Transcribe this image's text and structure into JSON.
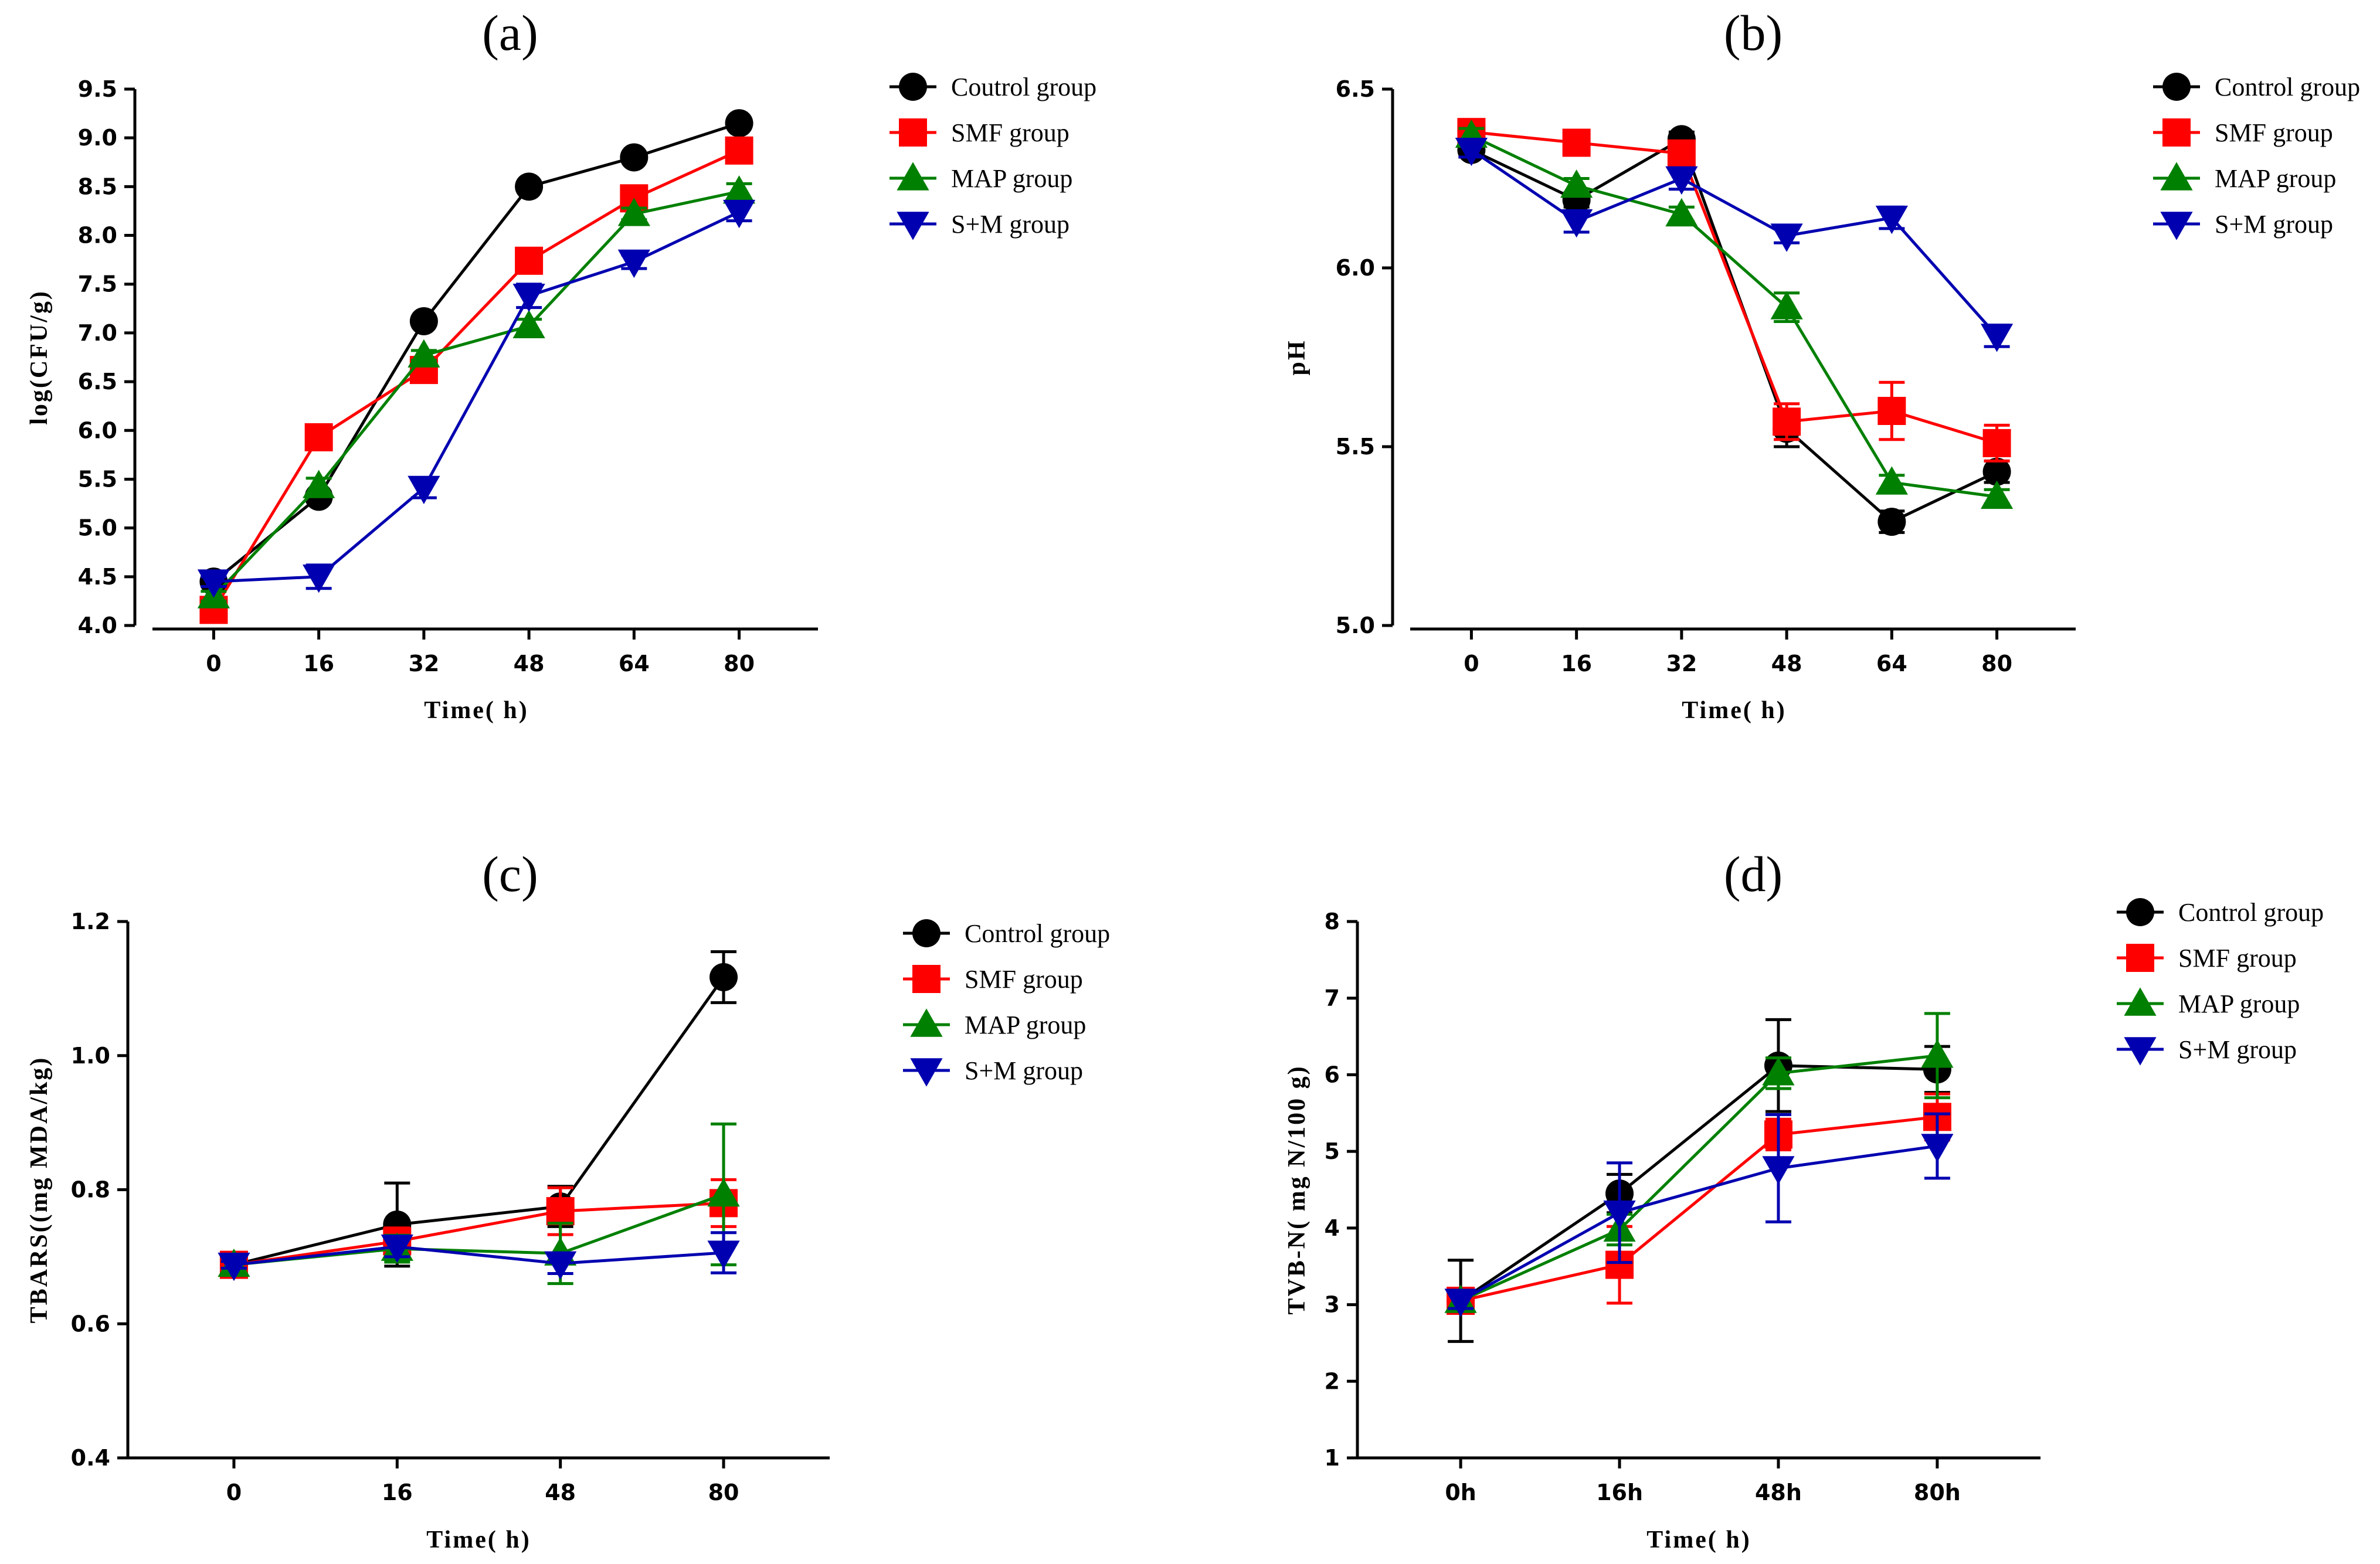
{
  "colors": {
    "control": "#000000",
    "smf": "#ff0000",
    "map": "#008000",
    "sm": "#0000b0"
  },
  "chart_data": [
    {
      "type": "line",
      "title": "(a)",
      "xlabel": "Time( h)",
      "ylabel": "log(CFU/g)",
      "categories": [
        "0",
        "16",
        "32",
        "48",
        "64",
        "80"
      ],
      "x": [
        0,
        16,
        32,
        48,
        64,
        80
      ],
      "xlim": [
        -12,
        92
      ],
      "ylim": [
        4.0,
        9.5
      ],
      "yticks": [
        4.0,
        4.5,
        5.0,
        5.5,
        6.0,
        6.5,
        7.0,
        7.5,
        8.0,
        8.5,
        9.0,
        9.5
      ],
      "ytick_labels": [
        "4.0",
        "4.5",
        "5.0",
        "5.5",
        "6.0",
        "6.5",
        "7.0",
        "7.5",
        "8.0",
        "8.5",
        "9.0",
        "9.5"
      ],
      "series": [
        {
          "name": "Coutrol group",
          "key": "control",
          "marker": "circle",
          "values": [
            4.45,
            5.32,
            7.12,
            8.5,
            8.8,
            9.15
          ],
          "errors": [
            0.05,
            0.05,
            0.04,
            0.04,
            0.04,
            0.04
          ]
        },
        {
          "name": "SMF group",
          "key": "smf",
          "marker": "square",
          "values": [
            4.16,
            5.93,
            6.62,
            7.74,
            8.38,
            8.87
          ],
          "errors": [
            0.05,
            0.05,
            0.1,
            0.05,
            0.05,
            0.05
          ]
        },
        {
          "name": "MAP group",
          "key": "map",
          "marker": "triangle-up",
          "values": [
            4.3,
            5.43,
            6.77,
            7.07,
            8.22,
            8.45
          ],
          "errors": [
            0.05,
            0.08,
            0.05,
            0.07,
            0.06,
            0.08
          ]
        },
        {
          "name": "S+M group",
          "key": "sm",
          "marker": "triangle-down",
          "values": [
            4.45,
            4.5,
            5.41,
            7.38,
            7.73,
            8.24
          ],
          "errors": [
            0.05,
            0.12,
            0.1,
            0.12,
            0.07,
            0.09
          ]
        }
      ]
    },
    {
      "type": "line",
      "title": "(b)",
      "xlabel": "Time( h)",
      "ylabel": "pH",
      "categories": [
        "0",
        "16",
        "32",
        "48",
        "64",
        "80"
      ],
      "x": [
        0,
        16,
        32,
        48,
        64,
        80
      ],
      "xlim": [
        -12,
        92
      ],
      "ylim": [
        5.0,
        6.5
      ],
      "yticks": [
        5.0,
        5.5,
        6.0,
        6.5
      ],
      "ytick_labels": [
        "5.0",
        "5.5",
        "6.0",
        "6.5"
      ],
      "series": [
        {
          "name": "Control group",
          "key": "control",
          "marker": "circle",
          "values": [
            6.33,
            6.19,
            6.36,
            5.55,
            5.29,
            5.43
          ],
          "errors": [
            0.02,
            0.02,
            0.02,
            0.05,
            0.03,
            0.03
          ]
        },
        {
          "name": "SMF group",
          "key": "smf",
          "marker": "square",
          "values": [
            6.38,
            6.35,
            6.32,
            5.57,
            5.6,
            5.51
          ],
          "errors": [
            0.02,
            0.02,
            0.02,
            0.05,
            0.08,
            0.05
          ]
        },
        {
          "name": "MAP group",
          "key": "map",
          "marker": "triangle-up",
          "values": [
            6.37,
            6.23,
            6.15,
            5.89,
            5.4,
            5.36
          ],
          "errors": [
            0.02,
            0.02,
            0.02,
            0.04,
            0.02,
            0.02
          ]
        },
        {
          "name": "S+M group",
          "key": "sm",
          "marker": "triangle-down",
          "values": [
            6.33,
            6.13,
            6.25,
            6.09,
            6.14,
            5.81
          ],
          "errors": [
            0.02,
            0.03,
            0.03,
            0.02,
            0.03,
            0.03
          ]
        }
      ]
    },
    {
      "type": "line",
      "title": "(c)",
      "xlabel": "Time( h)",
      "ylabel": "TBARS((mg MDA/kg)",
      "categories": [
        "0",
        "16",
        "48",
        "80"
      ],
      "x": [
        0,
        1,
        2,
        3
      ],
      "xlim": [
        -0.65,
        3.65
      ],
      "ylim": [
        0.4,
        1.2
      ],
      "yticks": [
        0.4,
        0.6,
        0.8,
        1.0,
        1.2
      ],
      "ytick_labels": [
        "0.4",
        "0.6",
        "0.8",
        "1.0",
        "1.2"
      ],
      "series": [
        {
          "name": "Control group",
          "key": "control",
          "marker": "circle",
          "values": [
            0.688,
            0.748,
            0.775,
            1.117
          ],
          "errors": [
            0.005,
            0.062,
            0.03,
            0.038
          ]
        },
        {
          "name": "SMF group",
          "key": "smf",
          "marker": "square",
          "values": [
            0.688,
            0.723,
            0.768,
            0.78
          ],
          "errors": [
            0.005,
            0.02,
            0.035,
            0.035
          ]
        },
        {
          "name": "MAP group",
          "key": "map",
          "marker": "triangle-up",
          "values": [
            0.688,
            0.712,
            0.705,
            0.793
          ],
          "errors": [
            0.005,
            0.02,
            0.045,
            0.105
          ]
        },
        {
          "name": "S+M group",
          "key": "sm",
          "marker": "triangle-down",
          "values": [
            0.688,
            0.715,
            0.69,
            0.706
          ],
          "errors": [
            0.005,
            0.015,
            0.015,
            0.03
          ]
        }
      ]
    },
    {
      "type": "line",
      "title": "(d)",
      "xlabel": "Time( h)",
      "ylabel": "TVB-N( mg N/100 g)",
      "categories": [
        "0h",
        "16h",
        "48h",
        "80h"
      ],
      "x": [
        0,
        1,
        2,
        3
      ],
      "xlim": [
        -0.65,
        3.65
      ],
      "ylim": [
        1,
        8
      ],
      "yticks": [
        1,
        2,
        3,
        4,
        5,
        6,
        7,
        8
      ],
      "ytick_labels": [
        "1",
        "2",
        "3",
        "4",
        "5",
        "6",
        "7",
        "8"
      ],
      "series": [
        {
          "name": "Control group",
          "key": "control",
          "marker": "circle",
          "values": [
            3.05,
            4.45,
            6.12,
            6.07
          ],
          "errors": [
            0.53,
            0.25,
            0.6,
            0.3
          ]
        },
        {
          "name": "SMF group",
          "key": "smf",
          "marker": "square",
          "values": [
            3.05,
            3.52,
            5.22,
            5.45
          ],
          "errors": [
            0.1,
            0.5,
            0.2,
            0.3
          ]
        },
        {
          "name": "MAP group",
          "key": "map",
          "marker": "triangle-up",
          "values": [
            3.05,
            3.98,
            6.02,
            6.25
          ],
          "errors": [
            0.1,
            0.2,
            0.2,
            0.55
          ]
        },
        {
          "name": "S+M group",
          "key": "sm",
          "marker": "triangle-down",
          "values": [
            3.05,
            4.2,
            4.78,
            5.07
          ],
          "errors": [
            0.1,
            0.65,
            0.7,
            0.42
          ]
        }
      ]
    }
  ]
}
